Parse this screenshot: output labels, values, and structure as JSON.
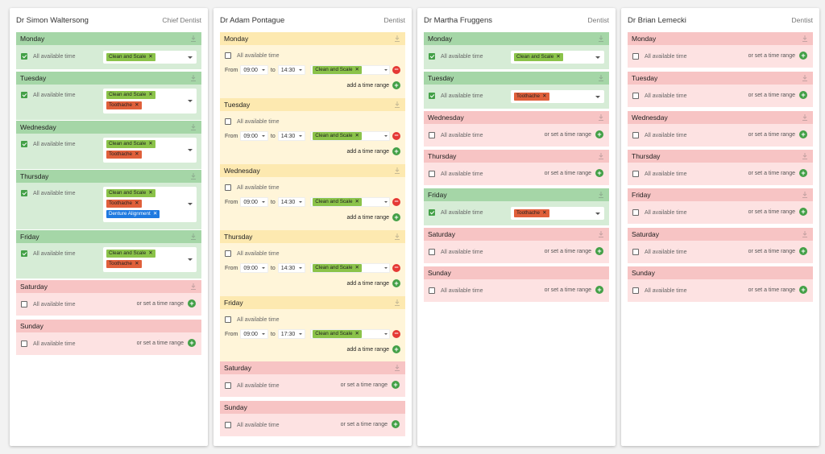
{
  "colors": {
    "available_header": "#a5d6a7",
    "partial_header": "#fde9b0",
    "unavailable_header": "#f7c4c4",
    "tag_clean": "#8bc34a",
    "tag_toothache": "#e0603b",
    "tag_denture": "#1f7ae0",
    "plus": "#43a047",
    "minus": "#e53935"
  },
  "labels": {
    "all_available": "All available time",
    "or_set": "or set a time range",
    "add_range": "add a time range",
    "from": "From",
    "to": "to",
    "remove": "x"
  },
  "doctors": [
    {
      "name": "Dr Simon Waltersong",
      "role": "Chief Dentist",
      "days": {
        "monday": {
          "label": "Monday",
          "tags": [
            "Clean and Scale"
          ]
        },
        "tuesday": {
          "label": "Tuesday",
          "tags": [
            "Clean and Scale",
            "Toothache"
          ]
        },
        "wednesday": {
          "label": "Wednesday",
          "tags": [
            "Clean and Scale",
            "Toothache"
          ]
        },
        "thursday": {
          "label": "Thursday",
          "tags": [
            "Clean and Scale",
            "Toothache",
            "Denture Alignment"
          ]
        },
        "friday": {
          "label": "Friday",
          "tags": [
            "Clean and Scale",
            "Toothache"
          ]
        },
        "saturday": {
          "label": "Saturday"
        },
        "sunday": {
          "label": "Sunday"
        }
      }
    },
    {
      "name": "Dr Adam Pontague",
      "role": "Dentist",
      "days": {
        "monday": {
          "label": "Monday",
          "from": "09:00",
          "to": "14:30",
          "tag": "Clean and Scale"
        },
        "tuesday": {
          "label": "Tuesday",
          "from": "09:00",
          "to": "14:30",
          "tag": "Clean and Scale"
        },
        "wednesday": {
          "label": "Wednesday",
          "from": "09:00",
          "to": "14:30",
          "tag": "Clean and Scale"
        },
        "thursday": {
          "label": "Thursday",
          "from": "09:00",
          "to": "14:30",
          "tag": "Clean and Scale"
        },
        "friday": {
          "label": "Friday",
          "from": "09:00",
          "to": "17:30",
          "tag": "Clean and Scale"
        },
        "saturday": {
          "label": "Saturday"
        },
        "sunday": {
          "label": "Sunday"
        }
      }
    },
    {
      "name": "Dr Martha Fruggens",
      "role": "Dentist",
      "days": {
        "monday": {
          "label": "Monday",
          "tags": [
            "Clean and Scale"
          ]
        },
        "tuesday": {
          "label": "Tuesday",
          "tags": [
            "Toothache"
          ]
        },
        "wednesday": {
          "label": "Wednesday"
        },
        "thursday": {
          "label": "Thursday"
        },
        "friday": {
          "label": "Friday",
          "tags": [
            "Toothache"
          ]
        },
        "saturday": {
          "label": "Saturday"
        },
        "sunday": {
          "label": "Sunday"
        }
      }
    },
    {
      "name": "Dr Brian Lemecki",
      "role": "Dentist",
      "days": {
        "monday": {
          "label": "Monday"
        },
        "tuesday": {
          "label": "Tuesday"
        },
        "wednesday": {
          "label": "Wednesday"
        },
        "thursday": {
          "label": "Thursday"
        },
        "friday": {
          "label": "Friday"
        },
        "saturday": {
          "label": "Saturday"
        },
        "sunday": {
          "label": "Sunday"
        }
      }
    }
  ]
}
